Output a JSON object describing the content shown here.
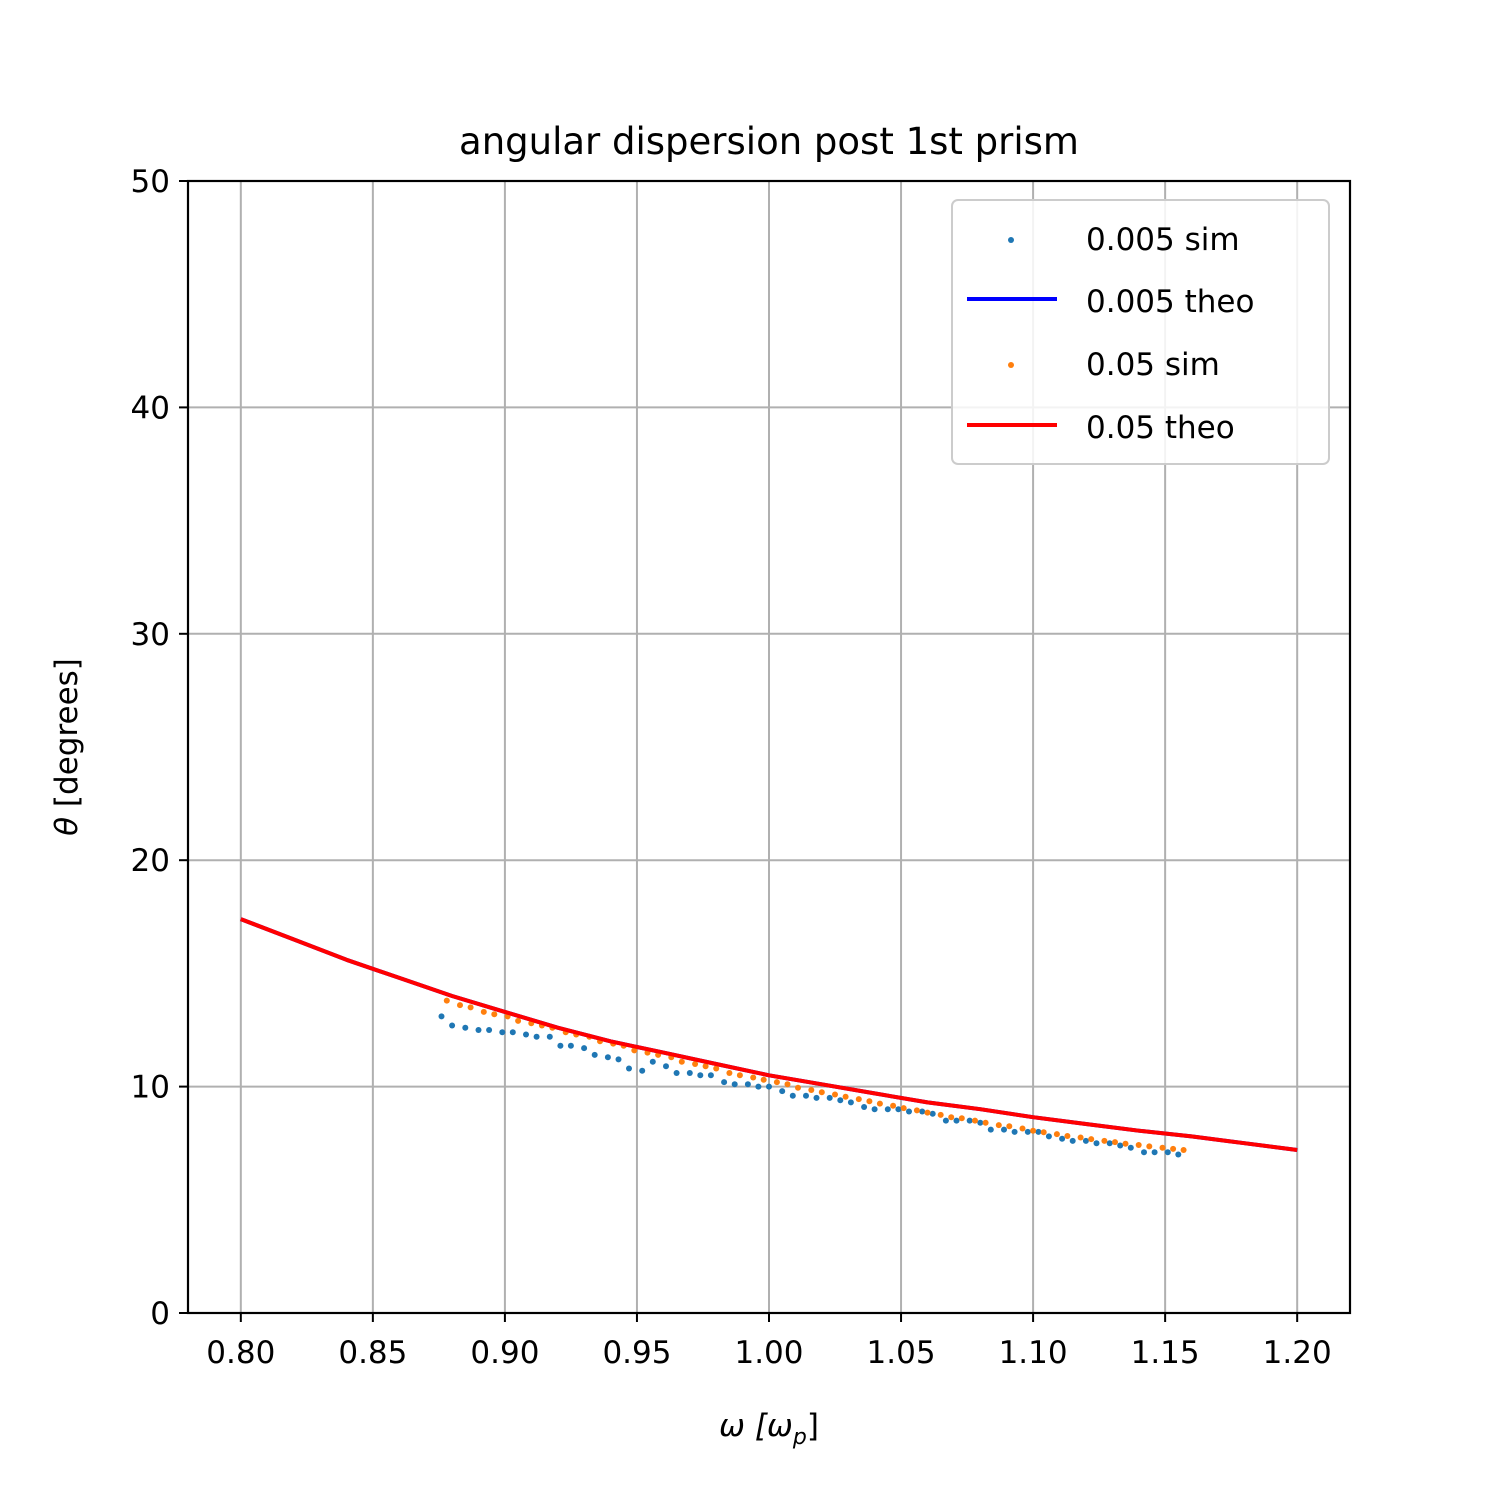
{
  "chart_data": {
    "type": "scatter",
    "title": "angular dispersion post 1st prism",
    "xlabel": "ω [ωp]",
    "xlabel_parts": {
      "main": "ω [ω",
      "sub": "p",
      "end": "]"
    },
    "ylabel": "θ [degrees]",
    "ylabel_parts": {
      "theta": "θ",
      "rest": " [degrees]"
    },
    "xlim": [
      0.78,
      1.22
    ],
    "ylim": [
      0,
      50
    ],
    "xticks": [
      0.8,
      0.85,
      0.9,
      0.95,
      1.0,
      1.05,
      1.1,
      1.15,
      1.2
    ],
    "xtick_labels": [
      "0.80",
      "0.85",
      "0.90",
      "0.95",
      "1.00",
      "1.05",
      "1.10",
      "1.15",
      "1.20"
    ],
    "yticks": [
      0,
      10,
      20,
      30,
      40,
      50
    ],
    "ytick_labels": [
      "0",
      "10",
      "20",
      "30",
      "40",
      "50"
    ],
    "grid": true,
    "legend_position": "top-right",
    "series": [
      {
        "name": "0.005 sim",
        "kind": "scatter",
        "color": "#1f77b4",
        "x": [
          0.876,
          0.88,
          0.885,
          0.89,
          0.894,
          0.899,
          0.903,
          0.908,
          0.912,
          0.917,
          0.921,
          0.925,
          0.93,
          0.934,
          0.939,
          0.943,
          0.947,
          0.952,
          0.956,
          0.961,
          0.965,
          0.97,
          0.974,
          0.978,
          0.983,
          0.987,
          0.992,
          0.996,
          1.0,
          1.005,
          1.009,
          1.014,
          1.018,
          1.023,
          1.027,
          1.031,
          1.036,
          1.04,
          1.045,
          1.049,
          1.053,
          1.058,
          1.062,
          1.067,
          1.071,
          1.076,
          1.08,
          1.084,
          1.089,
          1.093,
          1.098,
          1.102,
          1.106,
          1.111,
          1.115,
          1.12,
          1.124,
          1.129,
          1.133,
          1.137,
          1.142,
          1.146,
          1.151,
          1.155
        ],
        "y": [
          13.1,
          12.7,
          12.6,
          12.5,
          12.5,
          12.4,
          12.4,
          12.3,
          12.2,
          12.2,
          11.8,
          11.8,
          11.7,
          11.4,
          11.3,
          11.2,
          10.8,
          10.7,
          11.1,
          10.9,
          10.6,
          10.6,
          10.5,
          10.5,
          10.2,
          10.1,
          10.1,
          10.0,
          10.0,
          9.8,
          9.6,
          9.6,
          9.5,
          9.5,
          9.4,
          9.3,
          9.1,
          9.0,
          9.0,
          9.0,
          8.9,
          8.9,
          8.8,
          8.5,
          8.5,
          8.5,
          8.4,
          8.1,
          8.1,
          8.0,
          8.0,
          8.0,
          7.8,
          7.7,
          7.6,
          7.6,
          7.5,
          7.5,
          7.4,
          7.3,
          7.1,
          7.1,
          7.1,
          7.0
        ]
      },
      {
        "name": "0.005 theo",
        "kind": "line",
        "color": "#0000ff",
        "x": [
          0.8,
          0.82,
          0.84,
          0.86,
          0.88,
          0.9,
          0.92,
          0.94,
          0.96,
          0.98,
          1.0,
          1.02,
          1.04,
          1.06,
          1.08,
          1.1,
          1.12,
          1.14,
          1.16,
          1.18,
          1.2
        ],
        "y": [
          17.4,
          16.5,
          15.6,
          14.8,
          14.0,
          13.3,
          12.6,
          12.0,
          11.5,
          11.0,
          10.5,
          10.1,
          9.7,
          9.3,
          9.0,
          8.65,
          8.35,
          8.05,
          7.8,
          7.5,
          7.2
        ]
      },
      {
        "name": "0.05 sim",
        "kind": "scatter",
        "color": "#ff7f0e",
        "x": [
          0.878,
          0.883,
          0.887,
          0.892,
          0.896,
          0.901,
          0.905,
          0.91,
          0.914,
          0.918,
          0.923,
          0.927,
          0.932,
          0.936,
          0.941,
          0.945,
          0.949,
          0.954,
          0.958,
          0.963,
          0.967,
          0.972,
          0.976,
          0.98,
          0.985,
          0.989,
          0.994,
          0.998,
          1.003,
          1.007,
          1.011,
          1.016,
          1.02,
          1.025,
          1.029,
          1.034,
          1.038,
          1.042,
          1.047,
          1.051,
          1.056,
          1.06,
          1.065,
          1.069,
          1.073,
          1.078,
          1.082,
          1.087,
          1.091,
          1.096,
          1.1,
          1.104,
          1.109,
          1.113,
          1.118,
          1.122,
          1.127,
          1.131,
          1.135,
          1.14,
          1.144,
          1.149,
          1.153,
          1.157
        ],
        "y": [
          13.8,
          13.6,
          13.5,
          13.3,
          13.2,
          13.1,
          12.9,
          12.8,
          12.7,
          12.6,
          12.4,
          12.3,
          12.2,
          12.0,
          11.9,
          11.8,
          11.6,
          11.5,
          11.4,
          11.3,
          11.1,
          11.0,
          10.9,
          10.8,
          10.6,
          10.5,
          10.4,
          10.3,
          10.2,
          10.1,
          9.95,
          9.85,
          9.75,
          9.65,
          9.55,
          9.45,
          9.35,
          9.25,
          9.15,
          9.05,
          8.95,
          8.85,
          8.75,
          8.65,
          8.6,
          8.5,
          8.4,
          8.3,
          8.25,
          8.15,
          8.05,
          7.98,
          7.9,
          7.82,
          7.75,
          7.68,
          7.6,
          7.55,
          7.48,
          7.42,
          7.36,
          7.3,
          7.25,
          7.2
        ]
      },
      {
        "name": "0.05 theo",
        "kind": "line",
        "color": "#ff0000",
        "x": [
          0.8,
          0.82,
          0.84,
          0.86,
          0.88,
          0.9,
          0.92,
          0.94,
          0.96,
          0.98,
          1.0,
          1.02,
          1.04,
          1.06,
          1.08,
          1.1,
          1.12,
          1.14,
          1.16,
          1.18,
          1.2
        ],
        "y": [
          17.4,
          16.5,
          15.6,
          14.8,
          14.0,
          13.3,
          12.6,
          12.0,
          11.5,
          11.0,
          10.5,
          10.1,
          9.7,
          9.3,
          9.0,
          8.65,
          8.35,
          8.05,
          7.8,
          7.5,
          7.2
        ]
      }
    ]
  }
}
